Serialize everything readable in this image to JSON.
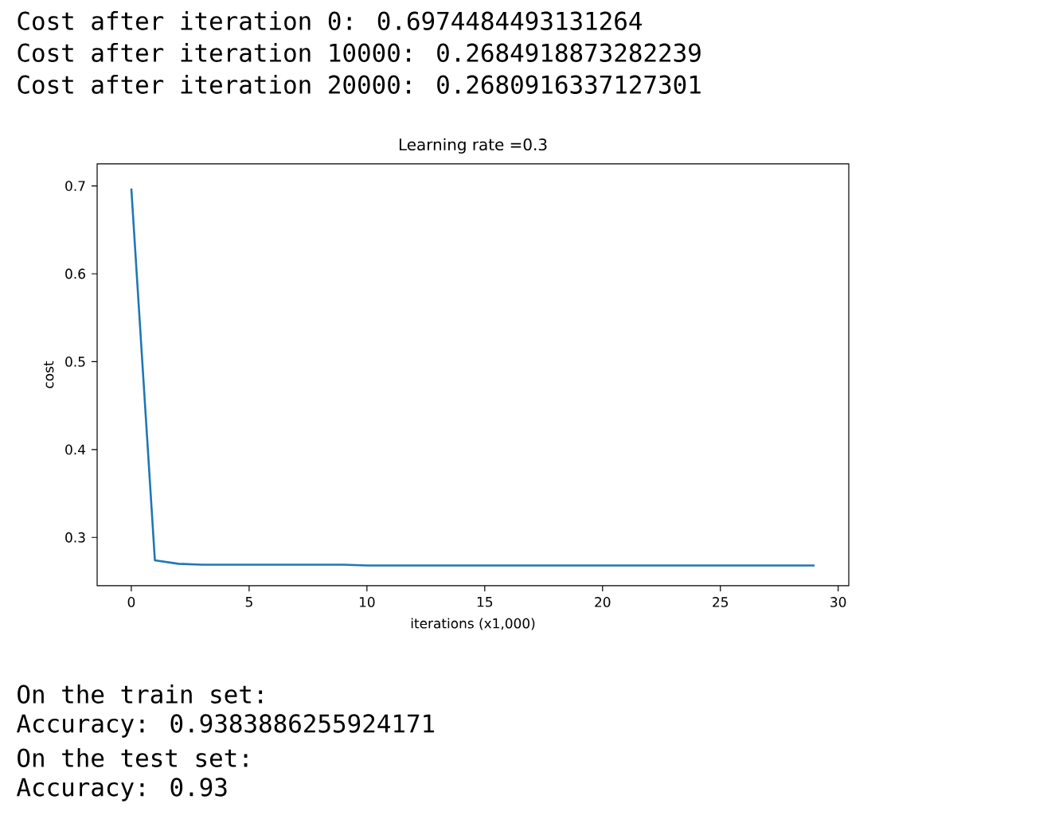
{
  "chart_data": {
    "type": "line",
    "title": "Learning rate =0.3",
    "xlabel": "iterations (x1,000)",
    "ylabel": "cost",
    "x": [
      0,
      1,
      2,
      3,
      4,
      5,
      6,
      7,
      8,
      9,
      10,
      11,
      12,
      13,
      14,
      15,
      16,
      17,
      18,
      19,
      20,
      21,
      22,
      23,
      24,
      25,
      26,
      27,
      28,
      29
    ],
    "values": [
      0.697,
      0.274,
      0.27,
      0.269,
      0.269,
      0.269,
      0.269,
      0.269,
      0.269,
      0.269,
      0.268,
      0.268,
      0.268,
      0.268,
      0.268,
      0.268,
      0.268,
      0.268,
      0.268,
      0.268,
      0.268,
      0.268,
      0.268,
      0.268,
      0.268,
      0.268,
      0.268,
      0.268,
      0.268,
      0.268
    ],
    "color": "#1f77b4",
    "xlim": [
      -1.45,
      30.45
    ],
    "ylim": [
      0.245,
      0.725
    ],
    "xticks": [
      0,
      5,
      10,
      15,
      20,
      25,
      30
    ],
    "yticks": [
      0.3,
      0.4,
      0.5,
      0.6,
      0.7
    ],
    "annotations": [
      "Cost after iteration 0: 0.6974484493131264",
      "Cost after iteration 10000: 0.2684918873282239",
      "Cost after iteration 20000: 0.2680916337127301",
      "On the train set:",
      "Accuracy: 0.9383886255924171",
      "On the test set:",
      "Accuracy: 0.93"
    ]
  }
}
